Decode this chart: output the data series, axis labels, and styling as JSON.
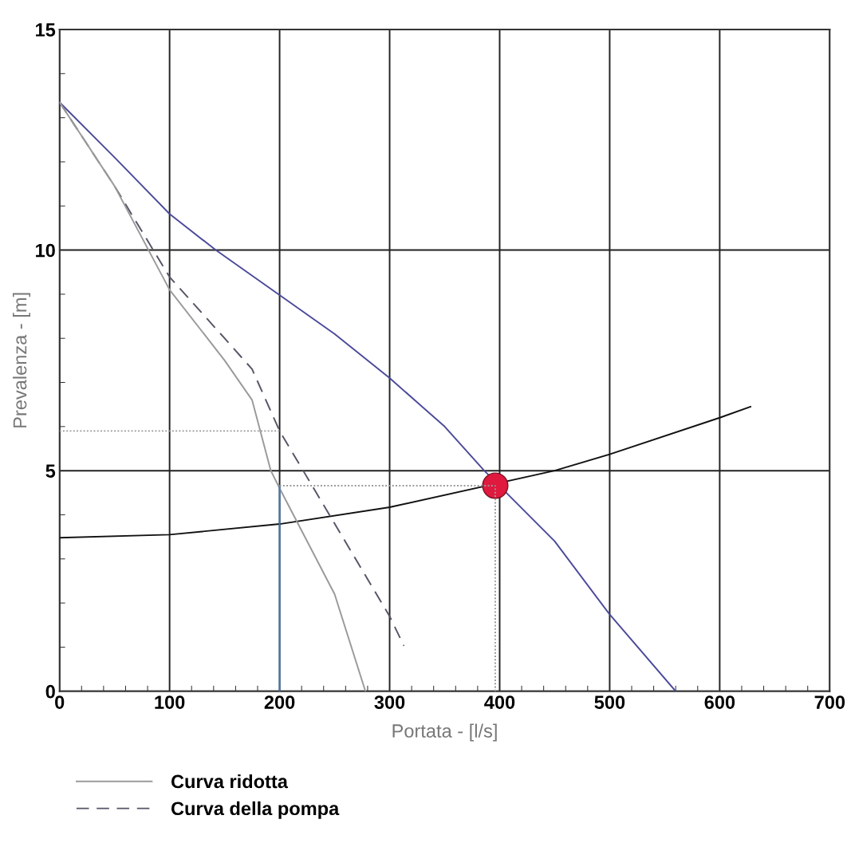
{
  "chart_data": {
    "type": "line",
    "xlabel": "Portata - [l/s]",
    "ylabel": "Prevalenza - [m]",
    "xlim": [
      0,
      700
    ],
    "ylim": [
      0,
      15
    ],
    "xticks": [
      0,
      100,
      200,
      300,
      400,
      500,
      600,
      700
    ],
    "yticks": [
      0,
      5,
      10,
      15
    ],
    "grid": true,
    "legend": "bottom",
    "marker": "none",
    "series": [
      {
        "color": "#4b4a9a",
        "x": [
          0,
          50,
          100,
          142,
          200,
          250,
          300,
          350,
          386,
          450,
          500,
          560
        ],
        "values": [
          13.35,
          12.1,
          10.82,
          10,
          8.98,
          8.1,
          7.1,
          6.0,
          5.0,
          3.4,
          1.74,
          0
        ]
      },
      {
        "color": "#111111",
        "x": [
          0,
          100,
          200,
          300,
          450,
          500,
          600,
          628
        ],
        "values": [
          3.48,
          3.55,
          3.79,
          4.17,
          5.0,
          5.37,
          6.2,
          6.45
        ]
      },
      {
        "name": "Curva della pompa",
        "color": "#555566",
        "line_style": "dashed",
        "x": [
          0,
          50,
          100,
          150,
          175,
          200,
          250,
          300,
          313
        ],
        "values": [
          13.35,
          11.45,
          9.39,
          8.0,
          7.3,
          5.9,
          3.8,
          1.7,
          1.03
        ]
      },
      {
        "name": "Curva ridotta",
        "color": "#9a9a9a",
        "x": [
          0,
          50,
          100,
          150,
          175,
          192,
          200,
          250,
          278
        ],
        "values": [
          13.35,
          11.45,
          9.1,
          7.5,
          6.6,
          5.0,
          4.6,
          2.2,
          0
        ]
      },
      {
        "color": "#3d7ab8",
        "x": [
          200,
          200
        ],
        "values": [
          0,
          4.66
        ]
      },
      {
        "color": "#999999",
        "line_style": "dotted",
        "x": [
          0,
          200
        ],
        "values": [
          5.9,
          5.9
        ]
      },
      {
        "color": "#999999",
        "line_style": "dotted",
        "x": [
          200,
          396
        ],
        "values": [
          4.66,
          4.66
        ]
      },
      {
        "color": "#999999",
        "line_style": "dotted",
        "x": [
          396,
          396
        ],
        "values": [
          0,
          4.66
        ]
      },
      {
        "type": "scatter",
        "marker": "circle",
        "color": "#e0193f",
        "x": [
          396
        ],
        "values": [
          4.66
        ]
      }
    ]
  }
}
